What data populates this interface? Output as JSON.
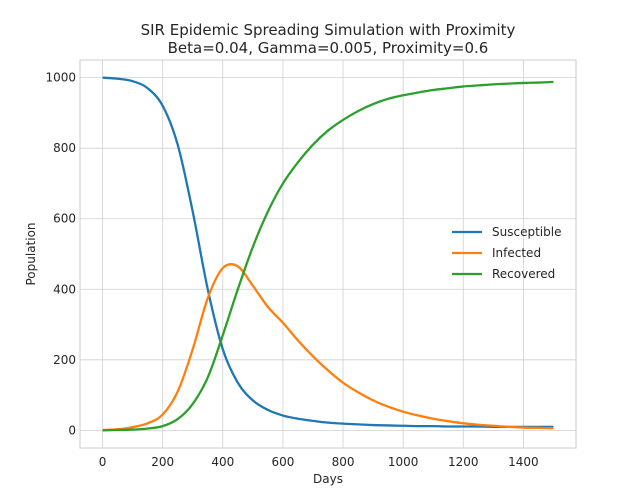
{
  "chart_data": {
    "type": "line",
    "title": "SIR Epidemic Spreading Simulation with Proximity",
    "subtitle": "Beta=0.04, Gamma=0.005, Proximity=0.6",
    "xlabel": "Days",
    "ylabel": "Population",
    "xlim": [
      -75,
      1575
    ],
    "ylim": [
      -50,
      1050
    ],
    "xticks": [
      0,
      200,
      400,
      600,
      800,
      1000,
      1200,
      1400
    ],
    "yticks": [
      0,
      200,
      400,
      600,
      800,
      1000
    ],
    "grid": true,
    "legend_position": "center-right",
    "x": [
      0,
      50,
      100,
      150,
      200,
      250,
      300,
      350,
      400,
      450,
      500,
      550,
      600,
      650,
      700,
      750,
      800,
      850,
      900,
      950,
      1000,
      1050,
      1100,
      1150,
      1200,
      1250,
      1300,
      1350,
      1400,
      1450,
      1500
    ],
    "series": [
      {
        "name": "Susceptible",
        "color": "#1f77b4",
        "values": [
          1000,
          997,
          990,
          970,
          920,
          810,
          620,
          400,
          230,
          135,
          85,
          58,
          42,
          33,
          27,
          22,
          19,
          17,
          15,
          14,
          13,
          12,
          12,
          11,
          11,
          11,
          10,
          10,
          10,
          10,
          10
        ]
      },
      {
        "name": "Infected",
        "color": "#ff7f0e",
        "values": [
          1,
          3,
          9,
          20,
          45,
          110,
          230,
          375,
          460,
          465,
          410,
          350,
          305,
          255,
          210,
          170,
          135,
          108,
          85,
          67,
          53,
          42,
          33,
          26,
          20,
          16,
          13,
          10,
          8,
          7,
          6
        ]
      },
      {
        "name": "Recovered",
        "color": "#2ca02c",
        "values": [
          0,
          1,
          2,
          5,
          12,
          32,
          75,
          150,
          270,
          400,
          520,
          620,
          700,
          760,
          810,
          850,
          880,
          905,
          925,
          940,
          950,
          958,
          965,
          970,
          975,
          978,
          981,
          983,
          985,
          986,
          988
        ]
      }
    ]
  }
}
